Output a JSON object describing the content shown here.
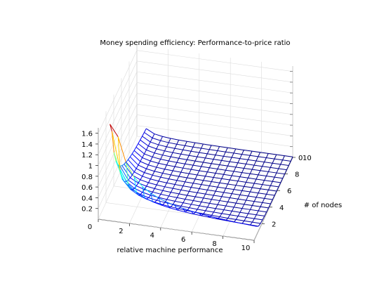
{
  "chart_data": {
    "type": "surface",
    "title": "Money spending efficiency: Performance-to-price ratio",
    "xlabel": "relative machine performance",
    "ylabel": "# of nodes",
    "zlabel": "",
    "formula": "z = 1 / (x * y)",
    "x_range": [
      0.6,
      10
    ],
    "y_range": [
      0.6,
      10
    ],
    "zlim": [
      0,
      1.7
    ],
    "grid_steps": 18,
    "colormap": "jet",
    "x_ticks": [
      "0",
      "2",
      "4",
      "6",
      "8",
      "10"
    ],
    "y_ticks": [
      "2",
      "4",
      "6",
      "8",
      "10"
    ],
    "z_ticks": [
      "0.2",
      "0.4",
      "0.6",
      "0.8",
      "1",
      "1.2",
      "1.4",
      "1.6"
    ],
    "right_z_tick": "0",
    "peak_value": 1.7,
    "min_value": 0.01
  }
}
